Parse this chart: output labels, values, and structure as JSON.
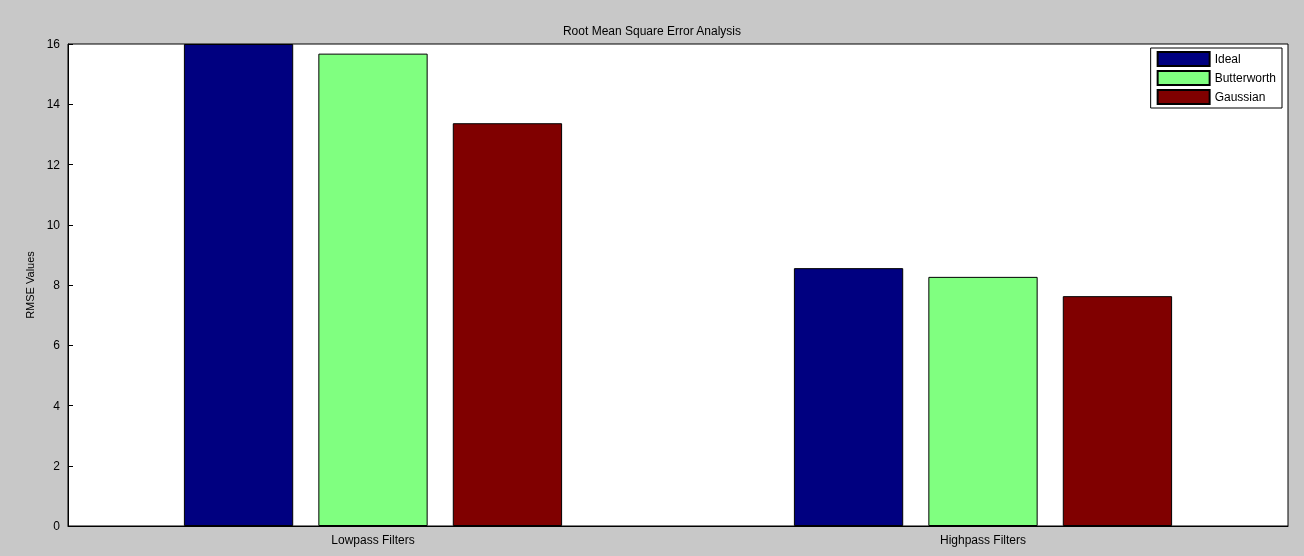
{
  "chart_data": {
    "type": "bar",
    "title": "Root Mean Square Error Analysis",
    "ylabel": "RMSE Values",
    "categories": [
      "Lowpass Filters",
      "Highpass Filters"
    ],
    "series": [
      {
        "name": "Ideal",
        "color": "#000080",
        "values": [
          16.0,
          8.56
        ]
      },
      {
        "name": "Butterworth",
        "color": "#80ff80",
        "values": [
          15.68,
          8.27
        ]
      },
      {
        "name": "Gaussian",
        "color": "#800000",
        "values": [
          13.37,
          7.63
        ]
      }
    ],
    "ylim": [
      0,
      16
    ],
    "yticks": [
      0,
      2,
      4,
      6,
      8,
      10,
      12,
      14,
      16
    ],
    "grid": false,
    "legend": "top right"
  }
}
